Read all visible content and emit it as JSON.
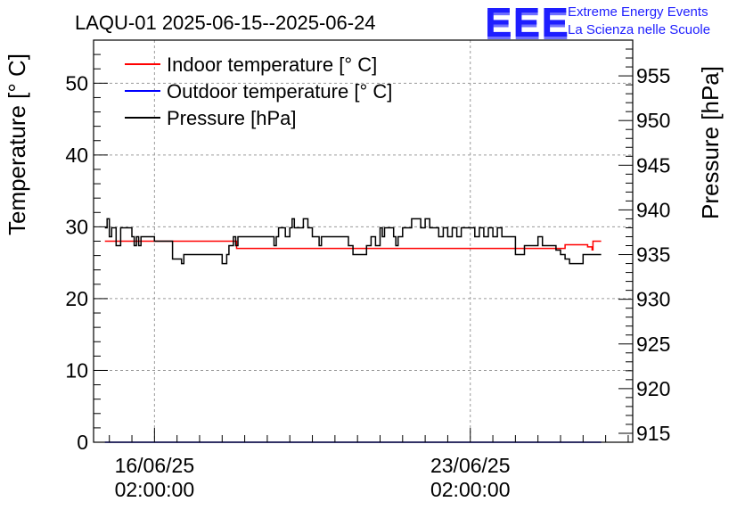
{
  "chart_data": {
    "type": "line",
    "title": "LAQU-01 2025-06-15--2025-06-24",
    "ylabel": "Temperature [° C]",
    "y2label": "Pressure [hPa]",
    "ylim": [
      0,
      56
    ],
    "y2lim": [
      914,
      959
    ],
    "yticks": [
      0,
      10,
      20,
      30,
      40,
      50
    ],
    "y2ticks": [
      915,
      920,
      925,
      930,
      935,
      940,
      945,
      950,
      955
    ],
    "xlim_days": [
      -1.35,
      10.6
    ],
    "xticks": [
      {
        "day": 0,
        "date": "16/06/25",
        "time": "02:00:00"
      },
      {
        "day": 7,
        "date": "23/06/25",
        "time": "02:00:00"
      }
    ],
    "grid": true,
    "legend_position": "top-left",
    "series": [
      {
        "name": "Indoor temperature [° C]",
        "axis": "left",
        "color": "#ff0000",
        "x": [
          -1.1,
          0.3,
          0.32,
          1.8,
          1.82,
          8.6,
          8.62,
          9.1,
          9.4,
          9.6,
          9.7,
          9.72,
          9.9
        ],
        "y": [
          28,
          28,
          28,
          28,
          27,
          27,
          27,
          27.5,
          27.5,
          27.2,
          26.8,
          28,
          28
        ]
      },
      {
        "name": "Outdoor temperature [° C]",
        "axis": "left",
        "color": "#0000ff",
        "x": [
          -1.1,
          9.9
        ],
        "y": [
          0,
          0
        ]
      },
      {
        "name": "Pressure [hPa]",
        "axis": "right",
        "color": "#000000",
        "x": [
          -1.1,
          -1.05,
          -1.0,
          -0.95,
          -0.9,
          -0.85,
          -0.75,
          -0.6,
          -0.5,
          -0.45,
          -0.4,
          -0.35,
          -0.3,
          -0.25,
          -0.15,
          0.0,
          0.4,
          0.6,
          0.65,
          0.7,
          0.75,
          0.85,
          1.4,
          1.5,
          1.55,
          1.6,
          1.65,
          1.75,
          1.8,
          1.85,
          1.95,
          2.6,
          2.65,
          2.7,
          2.75,
          2.8,
          2.9,
          3.0,
          3.05,
          3.1,
          3.2,
          3.3,
          3.4,
          3.5,
          3.6,
          3.65,
          3.7,
          3.75,
          3.85,
          4.3,
          4.35,
          4.4,
          4.6,
          4.65,
          4.7,
          4.8,
          4.9,
          5.0,
          5.05,
          5.1,
          5.2,
          5.3,
          5.35,
          5.4,
          5.5,
          5.6,
          5.7,
          5.8,
          5.9,
          6.0,
          6.1,
          6.2,
          6.3,
          6.4,
          6.5,
          6.6,
          6.7,
          6.8,
          6.9,
          7.0,
          7.1,
          7.2,
          7.3,
          7.4,
          7.5,
          7.6,
          7.7,
          7.8,
          7.9,
          8.0,
          8.1,
          8.2,
          8.3,
          8.4,
          8.5,
          8.6,
          8.7,
          8.8,
          8.9,
          9.0,
          9.1,
          9.2,
          9.3,
          9.4,
          9.5,
          9.6,
          9.7,
          9.8,
          9.9
        ],
        "y": [
          938,
          939,
          937,
          938,
          938,
          936,
          938,
          938,
          937,
          936,
          937,
          936,
          937,
          937,
          937,
          936.5,
          934.5,
          934,
          935,
          935,
          935,
          935,
          935,
          934,
          934,
          935,
          936,
          937,
          936,
          937,
          937,
          937,
          936,
          937,
          938,
          938,
          937,
          938,
          939,
          938,
          938,
          939,
          938,
          937,
          937,
          936,
          937,
          937,
          937,
          936,
          936,
          935,
          935,
          935,
          936,
          937,
          936,
          938,
          937,
          938,
          938,
          937,
          936,
          937,
          938,
          938,
          939,
          939,
          938,
          939,
          938,
          938,
          937,
          938,
          937,
          938,
          937,
          938,
          938,
          938,
          937,
          938,
          937,
          938,
          937,
          938,
          937,
          937,
          937,
          935,
          935,
          936,
          936,
          936,
          937,
          936,
          936,
          936,
          935.5,
          935,
          934.5,
          934,
          934,
          934,
          935,
          935,
          935,
          935,
          935
        ]
      }
    ]
  },
  "brand": {
    "logo_text": "EEE",
    "line1": "Extreme Energy Events",
    "line2": "La Scienza nelle Scuole",
    "color": "#1e1eff"
  }
}
